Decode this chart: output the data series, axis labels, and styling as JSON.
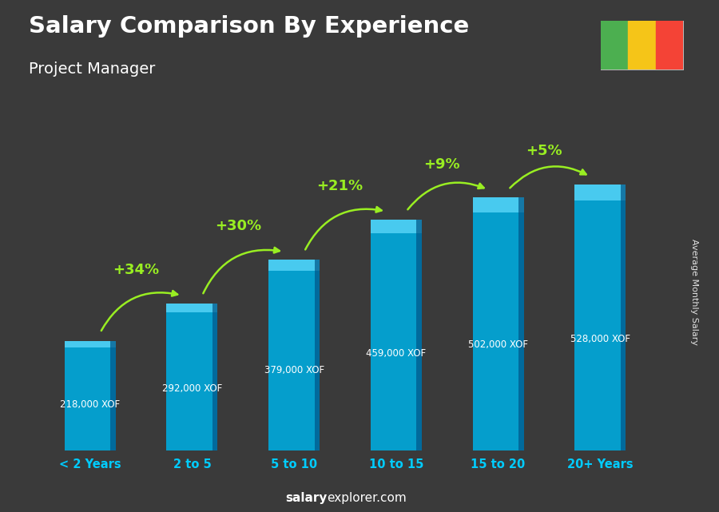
{
  "title": "Salary Comparison By Experience",
  "subtitle": "Project Manager",
  "categories": [
    "< 2 Years",
    "2 to 5",
    "5 to 10",
    "10 to 15",
    "15 to 20",
    "20+ Years"
  ],
  "values": [
    218000,
    292000,
    379000,
    459000,
    502000,
    528000
  ],
  "value_labels": [
    "218,000 XOF",
    "292,000 XOF",
    "379,000 XOF",
    "459,000 XOF",
    "502,000 XOF",
    "528,000 XOF"
  ],
  "pct_changes": [
    null,
    "+34%",
    "+30%",
    "+21%",
    "+9%",
    "+5%"
  ],
  "bar_color": "#00aadd",
  "bar_highlight": "#66ddff",
  "bar_shadow": "#005588",
  "pct_color": "#99ee22",
  "arrow_color": "#99ee22",
  "xticklabel_color": "#00ccff",
  "footer_bold": "salary",
  "footer_normal": "explorer.com",
  "ylabel_text": "Average Monthly Salary",
  "bg_color": "#3a3a3a",
  "ylim_max": 630000,
  "flag_colors": [
    "#4caf50",
    "#f5c518",
    "#f44336"
  ],
  "bar_width": 0.5
}
